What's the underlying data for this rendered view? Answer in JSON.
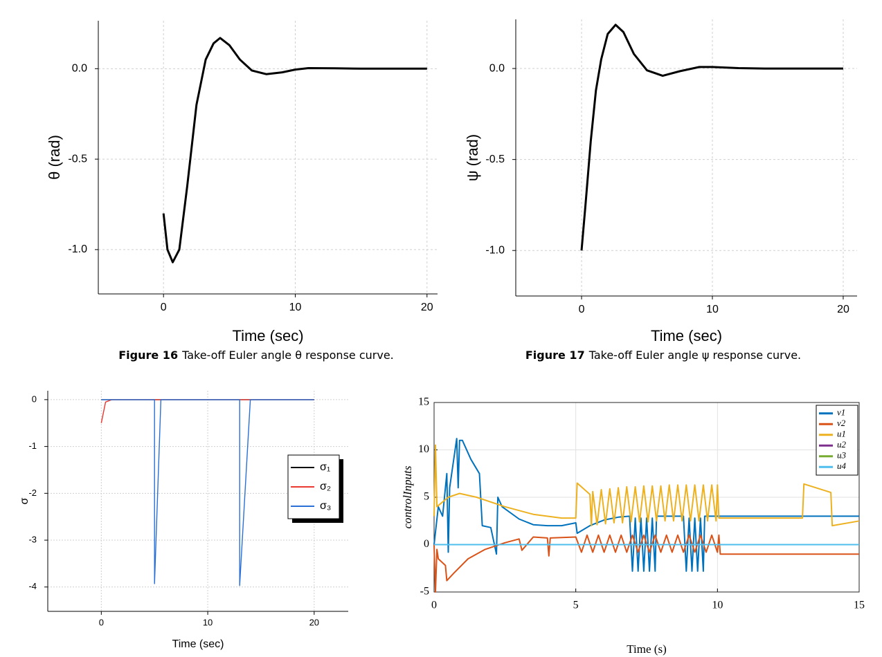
{
  "chart_data": [
    {
      "type": "line",
      "figure_label": "Figure 16",
      "caption": "Take-off Euler angle θ response curve.",
      "xlabel": "Time (sec)",
      "ylabel": "θ (rad)",
      "xlim": [
        -4.95,
        20.8
      ],
      "ylim": [
        -1.245,
        0.265
      ],
      "xticks": [
        0,
        10,
        20
      ],
      "yticks": [
        {
          "value": -1,
          "label": "-1.0"
        },
        {
          "value": -0.5,
          "label": "-0.5"
        },
        {
          "value": 0,
          "label": "0.0"
        }
      ],
      "grid": true,
      "series": [
        {
          "color": "#000000",
          "x": [
            0,
            0.3,
            0.7,
            1.2,
            1.8,
            2.5,
            3.2,
            3.8,
            4.3,
            5,
            5.8,
            6.7,
            7.8,
            9,
            10,
            11,
            13,
            15,
            20
          ],
          "values": [
            -0.8,
            -1.0,
            -1.07,
            -1.0,
            -0.65,
            -0.2,
            0.05,
            0.14,
            0.17,
            0.13,
            0.05,
            -0.01,
            -0.03,
            -0.02,
            -0.005,
            0.003,
            0.002,
            0,
            0
          ]
        }
      ]
    },
    {
      "type": "line",
      "figure_label": "Figure 17",
      "caption": "Take-off Euler angle ψ response curve.",
      "xlabel": "Time (sec)",
      "ylabel": "ψ (rad)",
      "xlim": [
        -5.03,
        21.06
      ],
      "ylim": [
        -1.25,
        0.27
      ],
      "xticks": [
        0,
        10,
        20
      ],
      "yticks": [
        {
          "value": -1,
          "label": "-1.0"
        },
        {
          "value": -0.5,
          "label": "-0.5"
        },
        {
          "value": 0,
          "label": "0.0"
        }
      ],
      "grid": true,
      "series": [
        {
          "color": "#000000",
          "x": [
            0,
            0.3,
            0.7,
            1.1,
            1.5,
            2,
            2.6,
            3.2,
            4,
            5,
            6.2,
            7.5,
            9,
            10,
            12,
            14,
            20
          ],
          "values": [
            -1,
            -0.75,
            -0.4,
            -0.12,
            0.05,
            0.19,
            0.24,
            0.2,
            0.08,
            -0.01,
            -0.04,
            -0.015,
            0.008,
            0.008,
            0.002,
            0,
            0
          ]
        }
      ]
    },
    {
      "type": "line",
      "xlabel": "Time (sec)",
      "ylabel": "σ",
      "xlim": [
        -5.03,
        23.2
      ],
      "ylim": [
        -4.52,
        0.19
      ],
      "xticks": [
        0,
        10,
        20
      ],
      "yticks": [
        0,
        -1,
        -2,
        -3,
        -4
      ],
      "grid": true,
      "legend": "center right",
      "series": [
        {
          "name": "σ₁",
          "color": "#000000",
          "x": [
            0,
            20
          ],
          "values": [
            0,
            0
          ]
        },
        {
          "name": "σ₂",
          "color": "#e8382f",
          "x": [
            0,
            0.4,
            1,
            20
          ],
          "values": [
            -0.5,
            -0.05,
            0,
            0
          ]
        },
        {
          "name": "σ₃",
          "color": "#2a6fd6",
          "x": [
            0,
            5,
            5,
            5.6,
            13,
            13,
            14,
            20
          ],
          "values": [
            0,
            0,
            -3.93,
            0,
            0,
            -3.97,
            0,
            0
          ]
        }
      ]
    },
    {
      "type": "line",
      "xlabel": "Time (s)",
      "ylabel": "controlInputs",
      "xlim": [
        0,
        15
      ],
      "ylim": [
        -5,
        15
      ],
      "xticks": [
        0,
        5,
        10,
        15
      ],
      "yticks": [
        -5,
        0,
        5,
        10,
        15
      ],
      "grid": true,
      "legend": "upper right",
      "series": [
        {
          "name": "v1",
          "color": "#0072bd",
          "x": [
            0,
            0.15,
            0.3,
            0.45,
            0.5,
            0.55,
            0.8,
            0.85,
            0.9,
            1.0,
            1.3,
            1.6,
            1.7,
            2.0,
            2.2,
            2.25,
            2.4,
            3.0,
            3.5,
            4.0,
            4.5,
            5.0,
            5.05,
            5.5,
            6.0,
            6.5,
            6.9,
            7.0,
            7.1,
            7.2,
            7.3,
            7.4,
            7.5,
            7.6,
            7.7,
            7.8,
            7.85,
            8.8,
            8.9,
            9.0,
            9.1,
            9.2,
            9.3,
            9.4,
            9.5,
            9.55,
            15
          ],
          "values": [
            0,
            4,
            3,
            7.5,
            -0.8,
            6,
            11.2,
            6,
            11,
            11,
            9,
            7.5,
            2,
            1.8,
            -1,
            5,
            4,
            2.7,
            2.1,
            2,
            2,
            2.3,
            1.2,
            2,
            2.6,
            2.9,
            3,
            -2.8,
            2.8,
            -2.8,
            2.8,
            -2.8,
            2.8,
            -2.8,
            2.8,
            -2.8,
            3,
            3,
            -2.8,
            2.8,
            -2.8,
            2.8,
            -2.8,
            2.8,
            -2.8,
            3,
            3
          ]
        },
        {
          "name": "v2",
          "color": "#d95319",
          "x": [
            0,
            0.05,
            0.1,
            0.15,
            0.4,
            0.45,
            0.7,
            1.2,
            1.8,
            2.5,
            3,
            3.1,
            3.5,
            4.0,
            4.05,
            4.1,
            5,
            5.2,
            5.4,
            5.6,
            5.8,
            6.0,
            6.2,
            6.4,
            6.6,
            6.8,
            7.0,
            7.2,
            7.4,
            7.6,
            7.8,
            8.0,
            8.2,
            8.4,
            8.6,
            8.8,
            9.0,
            9.2,
            9.4,
            9.6,
            9.8,
            10.0,
            10.05,
            10.1,
            15
          ],
          "values": [
            0,
            -5,
            -0.5,
            -1.5,
            -2.2,
            -3.8,
            -3,
            -1.5,
            -0.5,
            0.2,
            0.6,
            -0.6,
            0.8,
            0.7,
            -1.2,
            0.7,
            0.8,
            -0.8,
            1,
            -0.8,
            1,
            -0.8,
            1,
            -0.8,
            1,
            -0.8,
            1,
            -0.8,
            1,
            -0.8,
            1,
            -0.8,
            1,
            -0.8,
            1,
            -0.8,
            1,
            -0.8,
            1,
            -0.8,
            1,
            -0.8,
            1,
            -1,
            -1
          ]
        },
        {
          "name": "u1",
          "color": "#edb120",
          "x": [
            0,
            0.05,
            0.1,
            0.5,
            0.9,
            1.5,
            2.5,
            3.5,
            4.5,
            5.0,
            5.05,
            5.5,
            5.55,
            5.6,
            5.75,
            5.9,
            6.05,
            6.2,
            6.35,
            6.5,
            6.65,
            6.8,
            6.95,
            7.1,
            7.25,
            7.4,
            7.55,
            7.7,
            7.85,
            8.0,
            8.15,
            8.3,
            8.45,
            8.6,
            8.75,
            8.9,
            9.05,
            9.2,
            9.35,
            9.5,
            9.65,
            9.8,
            9.95,
            10.0,
            10.05,
            10.5,
            13,
            13.05,
            14,
            14.05,
            15
          ],
          "values": [
            3,
            10.5,
            4,
            5,
            5.4,
            5,
            4,
            3.2,
            2.8,
            2.8,
            6.5,
            5.3,
            2,
            5.6,
            2.1,
            5.8,
            2.2,
            5.9,
            2.3,
            6.0,
            2.3,
            6.1,
            2.4,
            6.1,
            2.4,
            6.2,
            2.4,
            6.2,
            2.5,
            6.2,
            2.5,
            6.3,
            2.5,
            6.3,
            2.5,
            6.3,
            2.5,
            6.3,
            2.5,
            6.3,
            2.5,
            6.3,
            2.5,
            6.3,
            2.8,
            2.8,
            2.8,
            6.4,
            5.5,
            2,
            2.5
          ]
        },
        {
          "name": "u2",
          "color": "#7e2f8e",
          "x": [
            0,
            15
          ],
          "values": [
            0,
            0
          ]
        },
        {
          "name": "u3",
          "color": "#77ac30",
          "x": [
            0,
            15
          ],
          "values": [
            0,
            0
          ]
        },
        {
          "name": "u4",
          "color": "#4dbeee",
          "x": [
            0,
            15
          ],
          "values": [
            0,
            0
          ]
        }
      ]
    }
  ]
}
